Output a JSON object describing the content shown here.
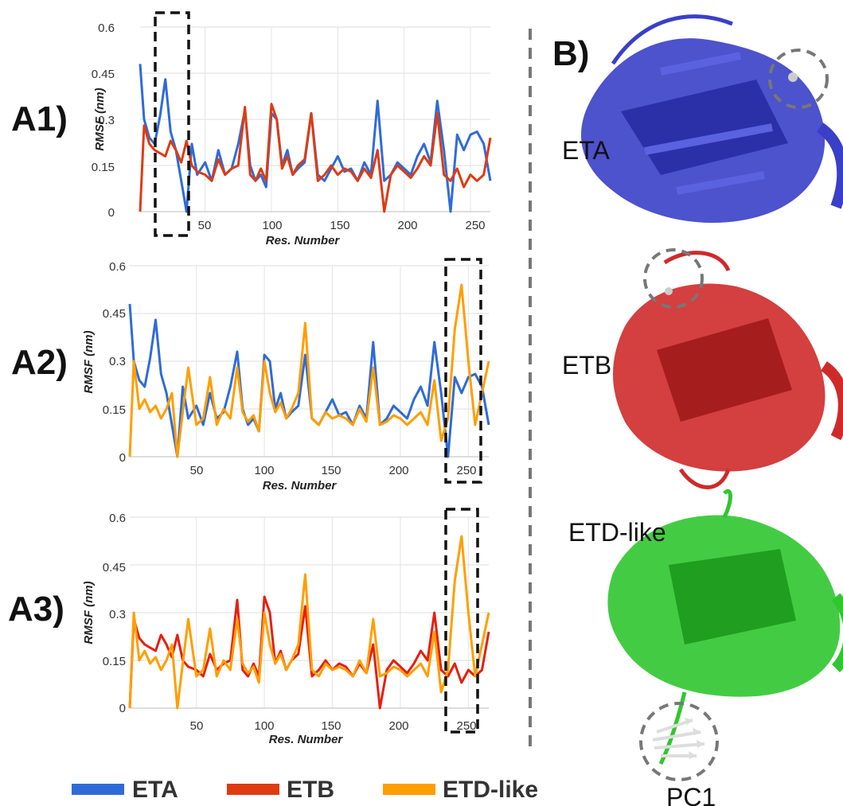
{
  "panels": {
    "a1": "A1)",
    "a2": "A2)",
    "a3": "A3)",
    "b": "B)"
  },
  "structures": [
    {
      "name": "ETA",
      "color": "#3a3fc8"
    },
    {
      "name": "ETB",
      "color": "#cf2a2a"
    },
    {
      "name": "ETD-like",
      "color": "#2fc62f"
    }
  ],
  "pc_label": "PC1",
  "legend": [
    {
      "label": "ETA",
      "color": "#2f6bd8"
    },
    {
      "label": "ETB",
      "color": "#de3b12"
    },
    {
      "label": "ETD-like",
      "color": "#ff9e00"
    }
  ],
  "chart_data": [
    {
      "type": "line",
      "panel": "A1)",
      "xlabel": "Res. Number",
      "ylabel": "RMSF (nm)",
      "xlim": [
        1,
        265
      ],
      "ylim": [
        0,
        0.6
      ],
      "xticks": [
        "50",
        "100",
        "150",
        "200",
        "250"
      ],
      "yticks": [
        "0",
        "0.15",
        "0.3",
        "0.45",
        "0.6"
      ],
      "grid": true,
      "series": [
        {
          "name": "ETA",
          "color": "#2f6bd8",
          "x": [
            1,
            4,
            8,
            12,
            16,
            20,
            24,
            28,
            32,
            36,
            40,
            44,
            50,
            55,
            60,
            65,
            70,
            75,
            80,
            84,
            88,
            92,
            96,
            100,
            104,
            108,
            112,
            116,
            120,
            125,
            130,
            135,
            140,
            145,
            150,
            155,
            160,
            165,
            170,
            175,
            180,
            185,
            190,
            195,
            200,
            205,
            210,
            215,
            220,
            225,
            230,
            235,
            240,
            245,
            250,
            255,
            260,
            265
          ],
          "y": [
            0.48,
            0.3,
            0.24,
            0.22,
            0.31,
            0.43,
            0.26,
            0.2,
            0.1,
            0.0,
            0.22,
            0.12,
            0.16,
            0.1,
            0.2,
            0.12,
            0.14,
            0.22,
            0.33,
            0.15,
            0.1,
            0.12,
            0.08,
            0.32,
            0.3,
            0.15,
            0.2,
            0.12,
            0.14,
            0.16,
            0.32,
            0.12,
            0.1,
            0.14,
            0.18,
            0.13,
            0.14,
            0.1,
            0.16,
            0.12,
            0.36,
            0.1,
            0.12,
            0.16,
            0.14,
            0.12,
            0.18,
            0.22,
            0.16,
            0.36,
            0.2,
            0.0,
            0.25,
            0.2,
            0.25,
            0.26,
            0.22,
            0.1
          ]
        },
        {
          "name": "ETB",
          "color": "#de3b12",
          "x": [
            1,
            4,
            8,
            12,
            16,
            20,
            24,
            28,
            32,
            36,
            40,
            44,
            50,
            55,
            60,
            65,
            70,
            75,
            80,
            84,
            88,
            92,
            96,
            100,
            104,
            108,
            112,
            116,
            120,
            125,
            130,
            135,
            140,
            145,
            150,
            155,
            160,
            165,
            170,
            175,
            180,
            185,
            190,
            195,
            200,
            205,
            210,
            215,
            220,
            225,
            230,
            235,
            240,
            245,
            250,
            255,
            260,
            265
          ],
          "y": [
            0.0,
            0.28,
            0.22,
            0.2,
            0.19,
            0.18,
            0.23,
            0.2,
            0.16,
            0.23,
            0.15,
            0.13,
            0.12,
            0.1,
            0.17,
            0.12,
            0.14,
            0.15,
            0.34,
            0.12,
            0.1,
            0.14,
            0.1,
            0.35,
            0.3,
            0.14,
            0.18,
            0.12,
            0.15,
            0.17,
            0.32,
            0.1,
            0.12,
            0.15,
            0.12,
            0.14,
            0.13,
            0.1,
            0.14,
            0.11,
            0.2,
            0.0,
            0.12,
            0.15,
            0.13,
            0.11,
            0.14,
            0.18,
            0.15,
            0.32,
            0.12,
            0.1,
            0.14,
            0.08,
            0.12,
            0.1,
            0.12,
            0.24
          ]
        }
      ]
    },
    {
      "type": "line",
      "panel": "A2)",
      "xlabel": "Res. Number",
      "ylabel": "RMSF (nm)",
      "xlim": [
        1,
        265
      ],
      "ylim": [
        0,
        0.6
      ],
      "xticks": [
        "50",
        "100",
        "150",
        "200",
        "250"
      ],
      "yticks": [
        "0",
        "0.15",
        "0.3",
        "0.45",
        "0.6"
      ],
      "grid": true,
      "series": [
        {
          "name": "ETA",
          "color": "#2f6bd8",
          "x": [
            1,
            4,
            8,
            12,
            16,
            20,
            24,
            28,
            32,
            36,
            40,
            44,
            50,
            55,
            60,
            65,
            70,
            75,
            80,
            84,
            88,
            92,
            96,
            100,
            104,
            108,
            112,
            116,
            120,
            125,
            130,
            135,
            140,
            145,
            150,
            155,
            160,
            165,
            170,
            175,
            180,
            185,
            190,
            195,
            200,
            205,
            210,
            215,
            220,
            225,
            230,
            235,
            240,
            245,
            250,
            255,
            260,
            265
          ],
          "y": [
            0.48,
            0.3,
            0.24,
            0.22,
            0.31,
            0.43,
            0.26,
            0.2,
            0.1,
            0.0,
            0.22,
            0.12,
            0.16,
            0.1,
            0.2,
            0.12,
            0.14,
            0.22,
            0.33,
            0.15,
            0.1,
            0.12,
            0.08,
            0.32,
            0.3,
            0.15,
            0.2,
            0.12,
            0.14,
            0.16,
            0.32,
            0.12,
            0.1,
            0.14,
            0.18,
            0.13,
            0.14,
            0.1,
            0.16,
            0.12,
            0.36,
            0.1,
            0.12,
            0.16,
            0.14,
            0.12,
            0.18,
            0.22,
            0.16,
            0.36,
            0.2,
            0.0,
            0.25,
            0.2,
            0.25,
            0.26,
            0.22,
            0.1
          ]
        },
        {
          "name": "ETD-like",
          "color": "#ff9e00",
          "x": [
            1,
            4,
            8,
            12,
            16,
            20,
            24,
            28,
            32,
            36,
            40,
            44,
            50,
            55,
            60,
            65,
            70,
            75,
            80,
            84,
            88,
            92,
            96,
            100,
            104,
            108,
            112,
            116,
            120,
            125,
            130,
            135,
            140,
            145,
            150,
            155,
            160,
            165,
            170,
            175,
            180,
            185,
            190,
            195,
            200,
            205,
            210,
            215,
            220,
            225,
            230,
            235,
            240,
            245,
            250,
            255,
            260,
            265
          ],
          "y": [
            0.0,
            0.3,
            0.15,
            0.18,
            0.14,
            0.16,
            0.12,
            0.15,
            0.2,
            0.0,
            0.14,
            0.28,
            0.1,
            0.12,
            0.25,
            0.1,
            0.15,
            0.12,
            0.28,
            0.14,
            0.11,
            0.13,
            0.08,
            0.3,
            0.2,
            0.14,
            0.17,
            0.12,
            0.15,
            0.2,
            0.42,
            0.12,
            0.1,
            0.14,
            0.12,
            0.13,
            0.12,
            0.1,
            0.15,
            0.11,
            0.28,
            0.1,
            0.11,
            0.13,
            0.12,
            0.1,
            0.12,
            0.14,
            0.1,
            0.24,
            0.05,
            0.12,
            0.4,
            0.54,
            0.3,
            0.1,
            0.2,
            0.3
          ]
        }
      ]
    },
    {
      "type": "line",
      "panel": "A3)",
      "xlabel": "Res. Number",
      "ylabel": "RMSF (nm)",
      "xlim": [
        1,
        265
      ],
      "ylim": [
        0,
        0.6
      ],
      "xticks": [
        "50",
        "100",
        "150",
        "200",
        "250"
      ],
      "yticks": [
        "0",
        "0.15",
        "0.3",
        "0.45",
        "0.6"
      ],
      "grid": true,
      "series": [
        {
          "name": "ETB",
          "color": "#e61f10",
          "x": [
            1,
            4,
            8,
            12,
            16,
            20,
            24,
            28,
            32,
            36,
            40,
            44,
            50,
            55,
            60,
            65,
            70,
            75,
            80,
            84,
            88,
            92,
            96,
            100,
            104,
            108,
            112,
            116,
            120,
            125,
            130,
            135,
            140,
            145,
            150,
            155,
            160,
            165,
            170,
            175,
            180,
            185,
            190,
            195,
            200,
            205,
            210,
            215,
            220,
            225,
            230,
            235,
            240,
            245,
            250,
            255,
            260,
            265
          ],
          "y": [
            0.0,
            0.28,
            0.22,
            0.2,
            0.19,
            0.18,
            0.23,
            0.2,
            0.16,
            0.23,
            0.15,
            0.13,
            0.12,
            0.1,
            0.17,
            0.12,
            0.14,
            0.15,
            0.34,
            0.12,
            0.1,
            0.14,
            0.1,
            0.35,
            0.3,
            0.14,
            0.18,
            0.12,
            0.15,
            0.17,
            0.32,
            0.1,
            0.12,
            0.15,
            0.12,
            0.14,
            0.13,
            0.1,
            0.14,
            0.11,
            0.2,
            0.0,
            0.12,
            0.15,
            0.13,
            0.11,
            0.14,
            0.18,
            0.15,
            0.3,
            0.12,
            0.1,
            0.14,
            0.08,
            0.12,
            0.1,
            0.12,
            0.24
          ]
        },
        {
          "name": "ETD-like",
          "color": "#ff9e00",
          "x": [
            1,
            4,
            8,
            12,
            16,
            20,
            24,
            28,
            32,
            36,
            40,
            44,
            50,
            55,
            60,
            65,
            70,
            75,
            80,
            84,
            88,
            92,
            96,
            100,
            104,
            108,
            112,
            116,
            120,
            125,
            130,
            135,
            140,
            145,
            150,
            155,
            160,
            165,
            170,
            175,
            180,
            185,
            190,
            195,
            200,
            205,
            210,
            215,
            220,
            225,
            230,
            235,
            240,
            245,
            250,
            255,
            260,
            265
          ],
          "y": [
            0.0,
            0.3,
            0.15,
            0.18,
            0.14,
            0.16,
            0.12,
            0.15,
            0.2,
            0.0,
            0.14,
            0.28,
            0.1,
            0.12,
            0.25,
            0.1,
            0.15,
            0.12,
            0.28,
            0.14,
            0.11,
            0.13,
            0.08,
            0.3,
            0.2,
            0.14,
            0.17,
            0.12,
            0.15,
            0.2,
            0.42,
            0.12,
            0.1,
            0.14,
            0.12,
            0.13,
            0.12,
            0.1,
            0.15,
            0.11,
            0.28,
            0.1,
            0.11,
            0.13,
            0.12,
            0.1,
            0.12,
            0.14,
            0.1,
            0.24,
            0.05,
            0.12,
            0.4,
            0.54,
            0.3,
            0.1,
            0.2,
            0.3
          ]
        }
      ]
    }
  ]
}
